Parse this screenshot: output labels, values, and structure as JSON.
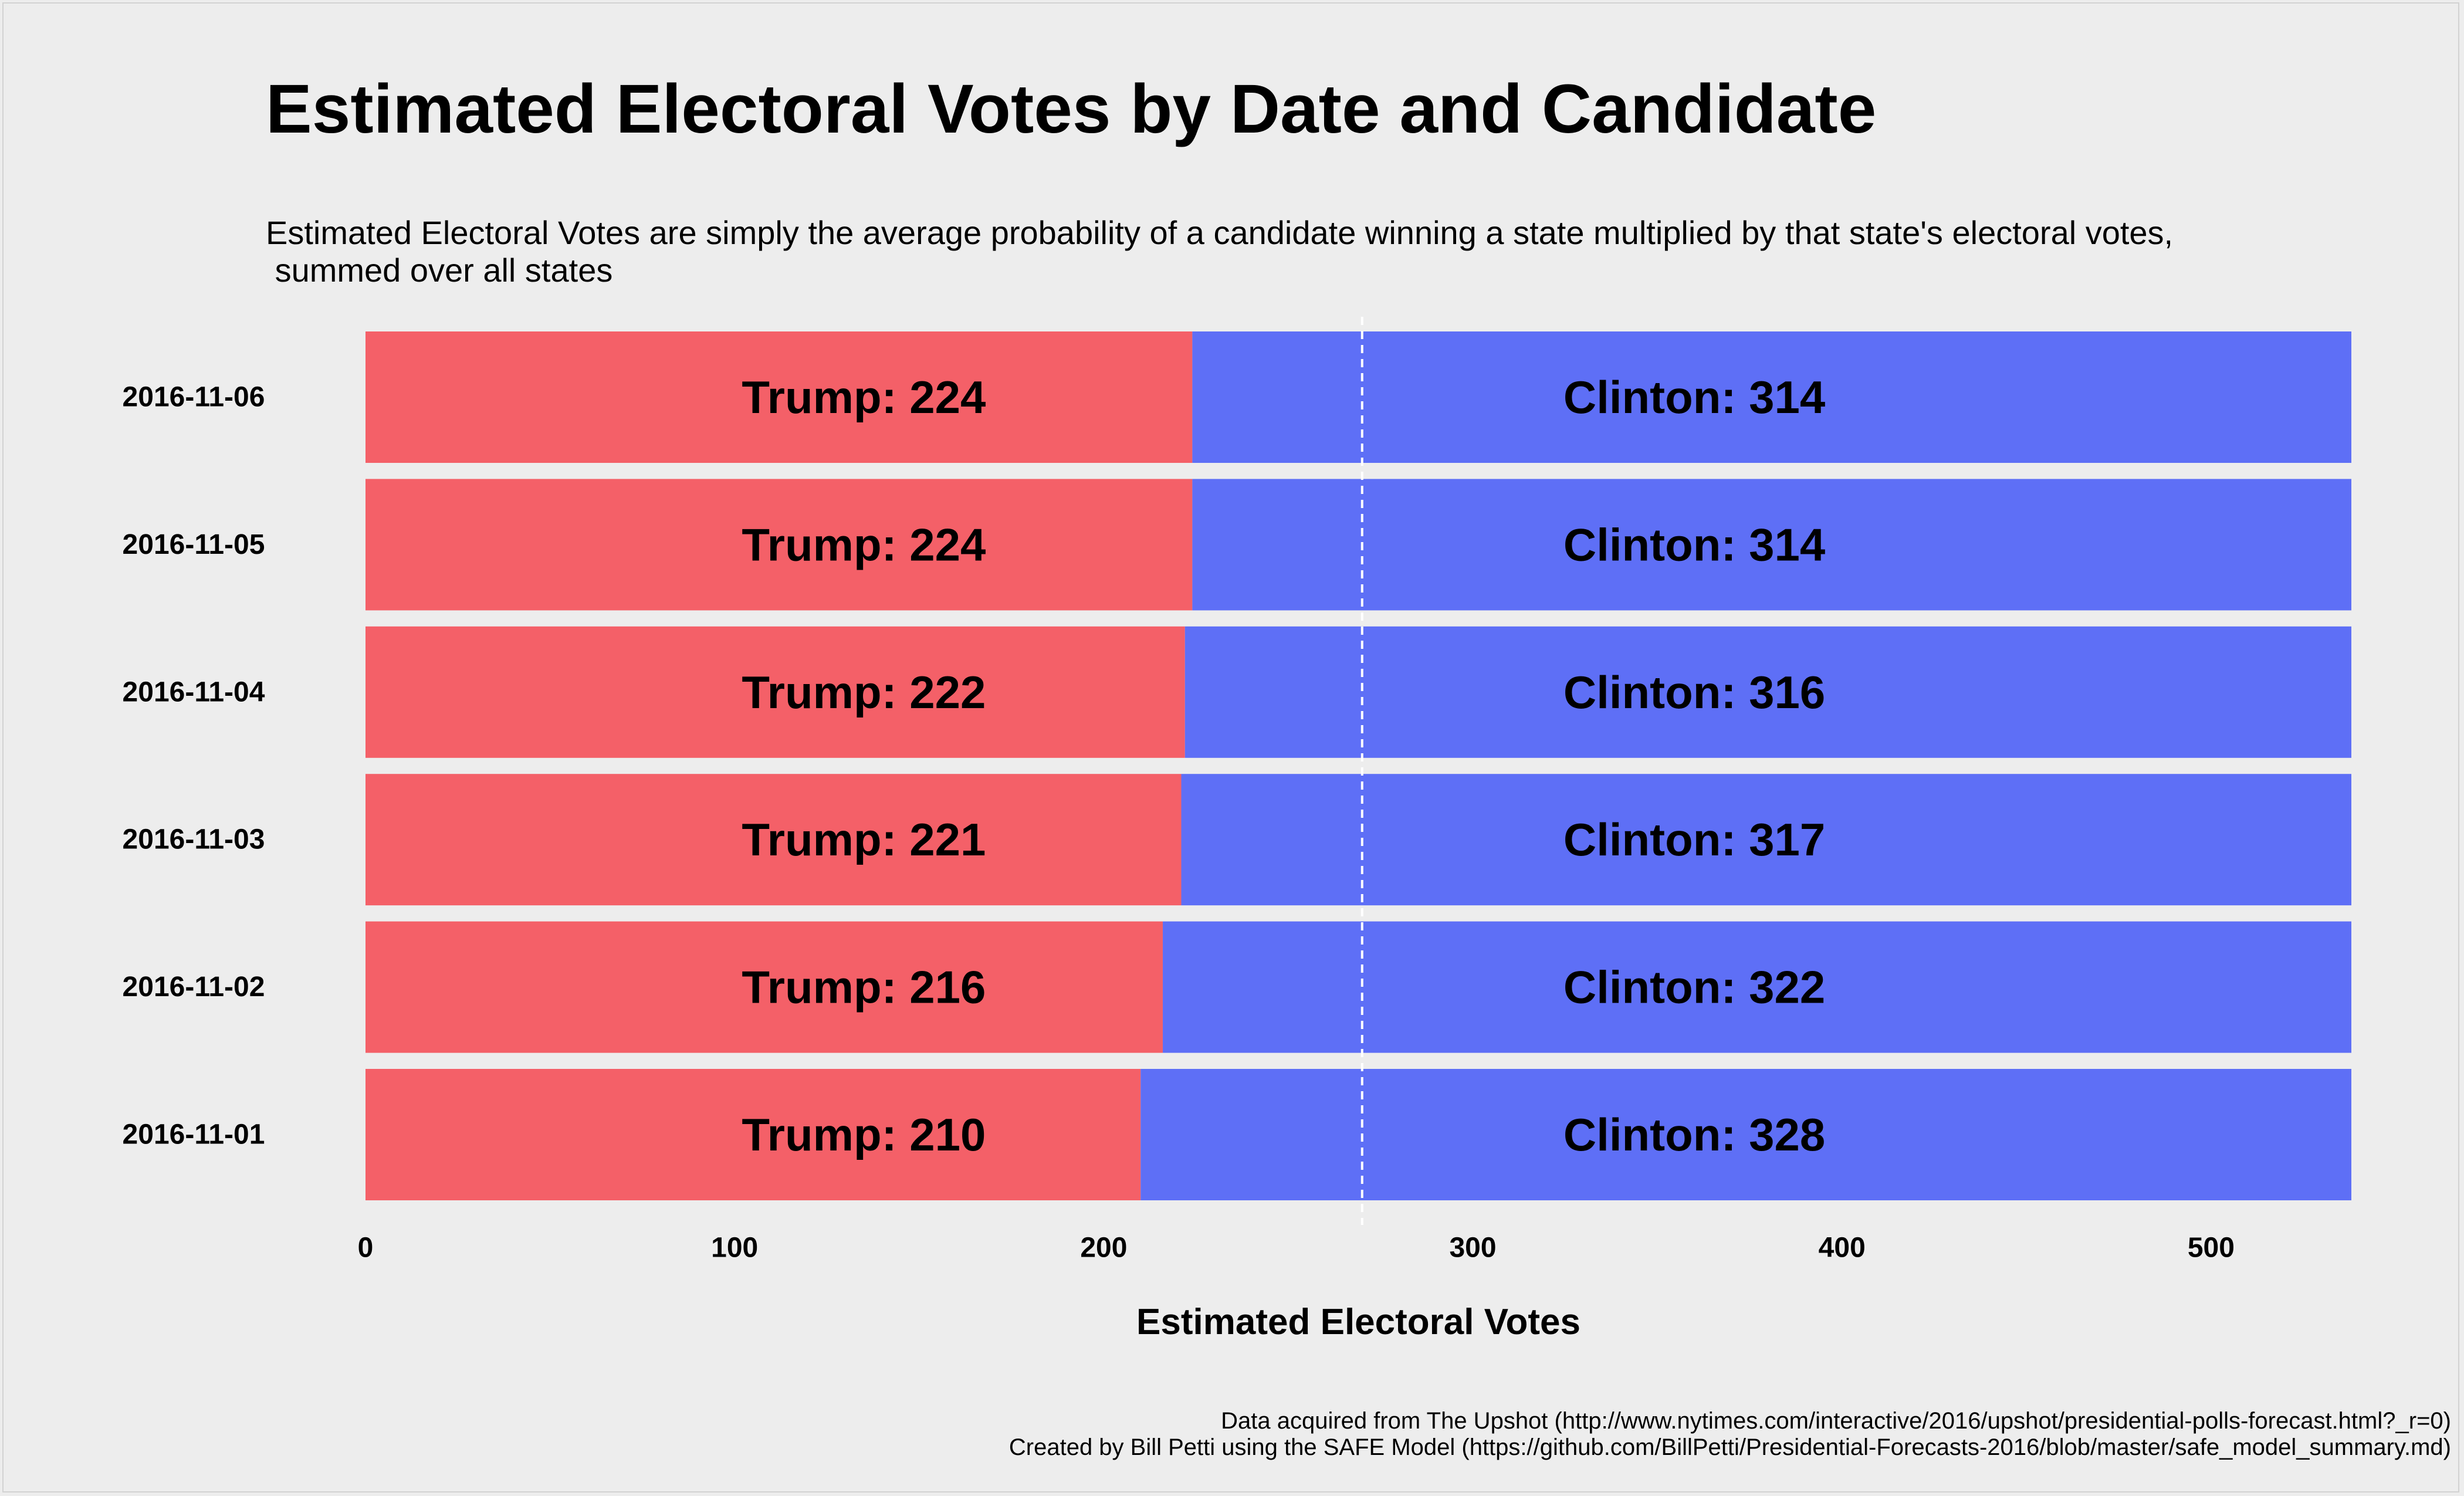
{
  "chart_data": {
    "type": "bar",
    "orientation": "horizontal",
    "stacked": true,
    "title": "Estimated Electoral Votes by Date and Candidate",
    "subtitle": "Estimated Electoral Votes are simply the average probability of a candidate winning a state multiplied by that state's electoral votes,\n summed over all states",
    "xlabel": "Estimated Electoral Votes",
    "ylabel": "",
    "xlim": [
      0,
      538
    ],
    "xticks": [
      0,
      100,
      200,
      300,
      400,
      500
    ],
    "reference_line": 270,
    "categories": [
      "2016-11-06",
      "2016-11-05",
      "2016-11-04",
      "2016-11-03",
      "2016-11-02",
      "2016-11-01"
    ],
    "series": [
      {
        "name": "Trump",
        "color": "#f46068",
        "values": [
          224,
          224,
          222,
          221,
          216,
          210
        ],
        "labels": [
          "Trump: 224",
          "Trump: 224",
          "Trump: 222",
          "Trump: 221",
          "Trump: 216",
          "Trump: 210"
        ]
      },
      {
        "name": "Clinton",
        "color": "#5e6ff6",
        "values": [
          314,
          314,
          316,
          317,
          322,
          328
        ],
        "labels": [
          "Clinton: 314",
          "Clinton: 314",
          "Clinton: 316",
          "Clinton: 317",
          "Clinton: 322",
          "Clinton: 328"
        ]
      }
    ],
    "label_positions": {
      "Trump": 135,
      "Clinton": 360
    },
    "grid": false,
    "legend": "none"
  },
  "captions": [
    "Data acquired from The Upshot (http://www.nytimes.com/interactive/2016/upshot/presidential-polls-forecast.html?_r=0)",
    "Created by Bill Petti using the SAFE Model (https://github.com/BillPetti/Presidential-Forecasts-2016/blob/master/safe_model_summary.md)"
  ],
  "colors": {
    "background": "#ededed",
    "trump": "#f46068",
    "clinton": "#5e6ff6",
    "reference_line": "#ffffff"
  }
}
